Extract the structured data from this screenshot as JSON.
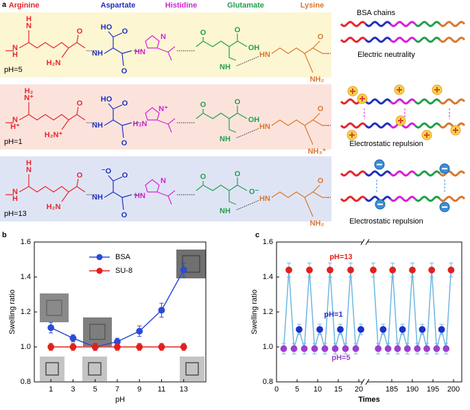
{
  "panel_a": {
    "label": "a",
    "chains_title": "BSA chains",
    "residues": [
      {
        "name": "Arginine",
        "color": "#e8242a"
      },
      {
        "name": "Aspartate",
        "color": "#1f2fbf"
      },
      {
        "name": "Histidine",
        "color": "#d61fd6"
      },
      {
        "name": "Glutamate",
        "color": "#1fa04a"
      },
      {
        "name": "Lysine",
        "color": "#d9772e"
      }
    ],
    "rows": [
      {
        "ph": "pH=5",
        "background": "#fdf6d3",
        "caption": "Electric neutrality",
        "atoms": [
          "H",
          "N",
          "N",
          "H",
          "H₂N",
          "O",
          "HO",
          "O",
          "NH",
          "O",
          "N",
          "HN",
          "O",
          "O",
          "OH",
          "NH",
          "HN",
          "O",
          "NH₂"
        ]
      },
      {
        "ph": "pH=1",
        "background": "#fbe3dc",
        "caption": "Electrostatic repulsion",
        "atoms": [
          "H₂",
          "N⁺",
          "N",
          "H⁺",
          "H₂N⁺",
          "O",
          "HO",
          "O",
          "NH",
          "O",
          "N⁺",
          "H₃N",
          "O",
          "O",
          "OH",
          "NH",
          "HN",
          "O",
          "NH₃⁺"
        ]
      },
      {
        "ph": "pH=13",
        "background": "#dfe4f5",
        "caption": "Electrostatic repulsion",
        "atoms": [
          "H",
          "N",
          "N",
          "H",
          "H₂N",
          "O",
          "⁻O",
          "O",
          "NH",
          "O",
          "N",
          "HN",
          "O",
          "O",
          "O⁻",
          "NH",
          "HN",
          "O",
          "NH₂"
        ]
      }
    ]
  },
  "chart_data": [
    {
      "type": "line",
      "label": "b",
      "x_label": "pH",
      "y_label": "Swelling ratio",
      "x": [
        1,
        3,
        5,
        7,
        9,
        11,
        13
      ],
      "xlim": [
        -0.5,
        15
      ],
      "xticks": [
        1,
        3,
        5,
        7,
        9,
        11,
        13
      ],
      "ylim": [
        0.8,
        1.6
      ],
      "yticks": [
        0.8,
        {
          "value": 1,
          "label": "1.0"
        },
        1.2,
        1.4,
        1.6
      ],
      "legend": "upper center",
      "series": [
        {
          "name": "BSA",
          "color": "#2a4bd7",
          "values": [
            1.11,
            1.05,
            1.0,
            1.03,
            1.09,
            1.21,
            1.44
          ],
          "errors": [
            0.03,
            0.02,
            0.02,
            0.02,
            0.03,
            0.04,
            0.04
          ]
        },
        {
          "name": "SU-8",
          "color": "#e0201c",
          "values": [
            1.0,
            1.0,
            1.0,
            1.0,
            1.0,
            1.0,
            1.0
          ],
          "errors": [
            0.02,
            0.02,
            0.02,
            0.02,
            0.02,
            0.02,
            0.02
          ]
        }
      ]
    },
    {
      "type": "scatter",
      "label": "c",
      "x_label": "Times",
      "y_label": "Swelling ratio",
      "xlim": [
        0,
        202
      ],
      "x_break": [
        21,
        179
      ],
      "xticks": [
        0,
        5,
        10,
        15,
        20,
        185,
        190,
        195,
        200
      ],
      "ylim": [
        0.8,
        1.6
      ],
      "yticks": [
        0.8,
        {
          "value": 1,
          "label": "1.0"
        },
        1.2,
        1.4,
        1.6
      ],
      "line": {
        "color": "#6db6e3",
        "x": [
          1.75,
          3,
          4.25,
          5.5,
          6.75,
          8,
          9.25,
          10.5,
          11.75,
          13,
          14.25,
          15.5,
          16.75,
          18,
          19.25,
          20.5,
          null,
          180.5,
          181.7,
          182.9,
          184.1,
          185.2,
          186.4,
          187.6,
          188.8,
          190,
          191.2,
          192.4,
          193.5,
          194.7,
          195.9,
          197.1,
          198.2,
          199.4
        ],
        "values": [
          0.99,
          1.44,
          0.99,
          1.1,
          0.99,
          1.44,
          0.99,
          1.1,
          0.99,
          1.44,
          0.99,
          1.1,
          0.99,
          1.44,
          0.99,
          1.1,
          null,
          1.44,
          0.99,
          1.1,
          0.99,
          1.44,
          0.99,
          1.1,
          0.99,
          1.44,
          0.99,
          1.1,
          0.99,
          1.44,
          0.99,
          1.1,
          0.99,
          1.44
        ]
      },
      "series": [
        {
          "name": "pH=13",
          "color": "#e3201b",
          "x": [
            3,
            8,
            13,
            18,
            180.5,
            185.2,
            190,
            194.7,
            199.4
          ],
          "values": [
            1.44,
            1.44,
            1.44,
            1.44,
            1.44,
            1.44,
            1.44,
            1.44,
            1.44
          ],
          "errors": [
            0.04,
            0.04,
            0.04,
            0.04,
            0.04,
            0.04,
            0.04,
            0.04,
            0.04
          ]
        },
        {
          "name": "pH=1",
          "color": "#1f2fc9",
          "x": [
            5.5,
            10.5,
            15.5,
            20.5,
            182.9,
            187.6,
            192.4,
            197.1
          ],
          "values": [
            1.1,
            1.1,
            1.1,
            1.1,
            1.1,
            1.1,
            1.1,
            1.1
          ],
          "errors": [
            0.03,
            0.03,
            0.03,
            0.03,
            0.03,
            0.03,
            0.03,
            0.03
          ]
        },
        {
          "name": "pH=5",
          "color": "#9b3fd0",
          "x": [
            1.75,
            4.25,
            6.75,
            9.25,
            11.75,
            14.25,
            16.75,
            19.25,
            181.7,
            184.1,
            186.4,
            188.8,
            191.2,
            193.5,
            195.9,
            198.2
          ],
          "values": [
            0.99,
            0.99,
            0.99,
            0.99,
            0.99,
            0.99,
            0.99,
            0.99,
            0.99,
            0.99,
            0.99,
            0.99,
            0.99,
            0.99,
            0.99,
            0.99
          ],
          "errors": [
            0.03,
            0.03,
            0.03,
            0.03,
            0.03,
            0.03,
            0.03,
            0.03,
            0.03,
            0.03,
            0.03,
            0.03,
            0.03,
            0.03,
            0.03,
            0.03
          ]
        }
      ]
    }
  ]
}
